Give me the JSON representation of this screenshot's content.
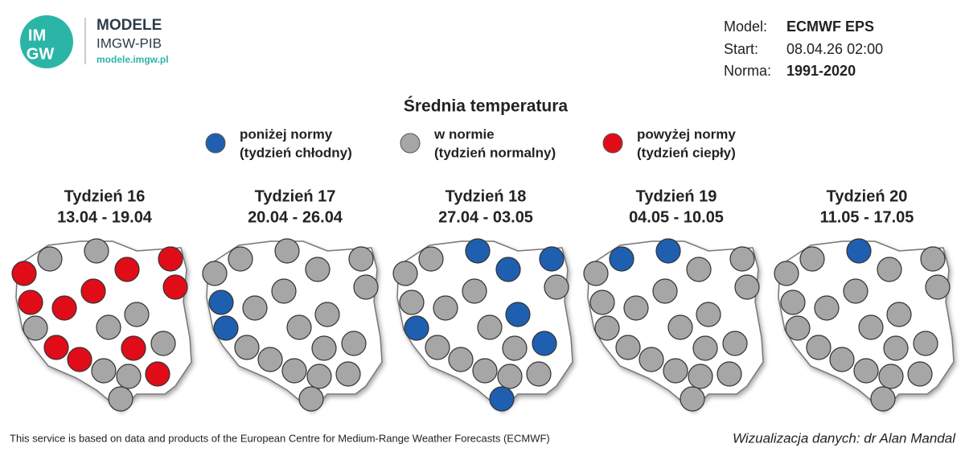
{
  "header": {
    "logo": {
      "line1": "IM",
      "line2": "GW"
    },
    "brand": "MODELE",
    "org": "IMGW-PIB",
    "url": "modele.imgw.pl"
  },
  "info": [
    {
      "label": "Model:",
      "value": "ECMWF EPS"
    },
    {
      "label": "Start:",
      "value": "08.04.26 02:00"
    },
    {
      "label": "Norma:",
      "value": "1991-2020"
    }
  ],
  "title": "Średnia temperatura",
  "legend": [
    {
      "line1": "poniżej normy",
      "line2": "(tydzień chłodny)",
      "color": "#1f5fb0"
    },
    {
      "line1": "w normie",
      "line2": "(tydzień normalny)",
      "color": "#a6a6a6"
    },
    {
      "line1": "powyżej normy",
      "line2": "(tydzień ciepły)",
      "color": "#e00d18"
    }
  ],
  "weeks": [
    {
      "name": "Tydzień 16",
      "dates": "13.04 - 19.04",
      "status": [
        2,
        1,
        1,
        2,
        2,
        2,
        2,
        2,
        2,
        1,
        1,
        1,
        1,
        2,
        2,
        2,
        1,
        1,
        2,
        1
      ]
    },
    {
      "name": "Tydzień 17",
      "dates": "20.04 - 26.04",
      "status": [
        1,
        1,
        1,
        1,
        1,
        1,
        1,
        0,
        1,
        0,
        1,
        1,
        1,
        1,
        1,
        1,
        1,
        1,
        1,
        1
      ]
    },
    {
      "name": "Tydzień 18",
      "dates": "27.04 - 03.05",
      "status": [
        1,
        1,
        0,
        0,
        0,
        1,
        1,
        1,
        1,
        0,
        0,
        1,
        0,
        1,
        1,
        1,
        1,
        1,
        1,
        0
      ]
    },
    {
      "name": "Tydzień 19",
      "dates": "04.05 - 10.05",
      "status": [
        1,
        0,
        0,
        1,
        1,
        1,
        1,
        1,
        1,
        1,
        1,
        1,
        1,
        1,
        1,
        1,
        1,
        1,
        1,
        1
      ]
    },
    {
      "name": "Tydzień 20",
      "dates": "11.05 - 17.05",
      "status": [
        1,
        1,
        0,
        1,
        1,
        1,
        1,
        1,
        1,
        1,
        1,
        1,
        1,
        1,
        1,
        1,
        1,
        1,
        1,
        1
      ]
    }
  ],
  "footer": "This service is based on data and products of the European Centre for Medium-Range Weather Forecasts (ECMWF)",
  "credit": "Wizualizacja danych: dr Alan Mandal"
}
